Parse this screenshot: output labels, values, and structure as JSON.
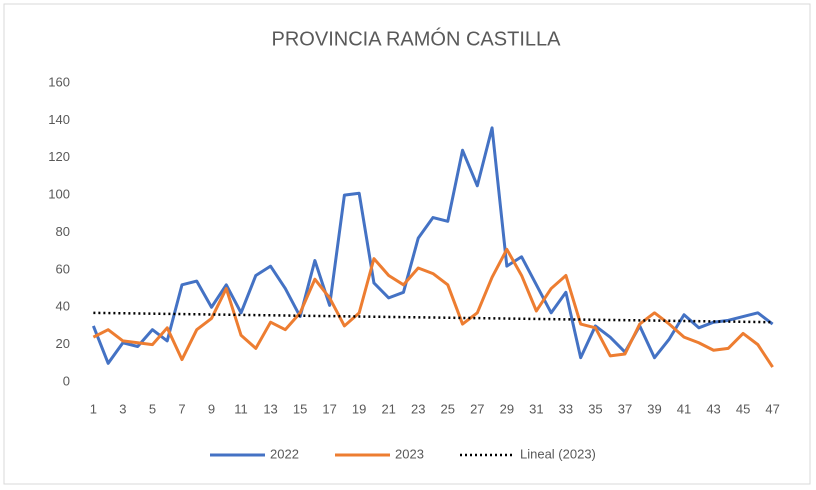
{
  "chart_data": {
    "type": "line",
    "title": "PROVINCIA RAMÓN CASTILLA",
    "categories": [
      1,
      null,
      3,
      null,
      5,
      null,
      7,
      null,
      9,
      null,
      11,
      null,
      13,
      null,
      15,
      null,
      17,
      null,
      19,
      null,
      21,
      null,
      23,
      null,
      25,
      null,
      27,
      null,
      29,
      null,
      31,
      null,
      33,
      null,
      35,
      null,
      37,
      null,
      39,
      null,
      41,
      null,
      43,
      null,
      45,
      null,
      47
    ],
    "series": [
      {
        "name": "2022",
        "color": "#4472c4",
        "values": [
          30,
          10,
          21,
          19,
          28,
          22,
          52,
          54,
          40,
          52,
          37,
          57,
          62,
          50,
          35,
          65,
          41,
          100,
          101,
          53,
          45,
          48,
          77,
          88,
          86,
          124,
          105,
          136,
          62,
          67,
          52,
          37,
          48,
          13,
          30,
          24,
          16,
          30,
          13,
          23,
          36,
          29,
          32,
          33,
          35,
          37,
          31
        ]
      },
      {
        "name": "2023",
        "color": "#ed7d31",
        "values": [
          24,
          28,
          22,
          21,
          20,
          29,
          12,
          28,
          34,
          50,
          25,
          18,
          32,
          28,
          37,
          55,
          45,
          30,
          37,
          66,
          57,
          52,
          61,
          58,
          52,
          31,
          37,
          56,
          71,
          57,
          38,
          50,
          57,
          31,
          29,
          14,
          15,
          31,
          37,
          31,
          24,
          21,
          17,
          18,
          26,
          20,
          8
        ]
      }
    ],
    "trendline": {
      "name": "Lineal (2023)",
      "color": "#000000",
      "start": 37,
      "end": 32
    },
    "ylim": [
      0,
      160
    ],
    "yticks": [
      0,
      20,
      40,
      60,
      80,
      100,
      120,
      140,
      160
    ],
    "grid": false
  }
}
